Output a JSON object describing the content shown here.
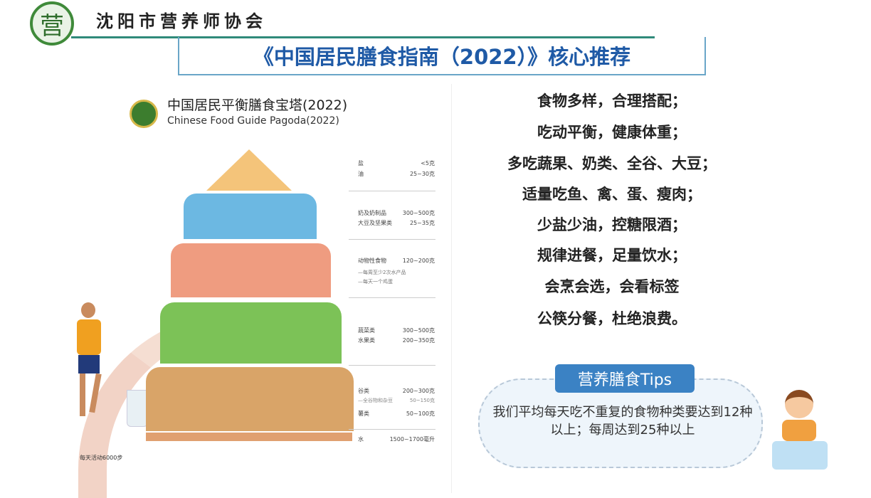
{
  "header": {
    "logo_char": "营",
    "org_name": "沈阳市营养师协会",
    "title": "《中国居民膳食指南（2022）》核心推荐"
  },
  "pagoda": {
    "title": "中国居民平衡膳食宝塔(2022)",
    "subtitle": "Chinese Food Guide Pagoda(2022)",
    "tiers": [
      {
        "items": [
          {
            "name": "盐",
            "amount": "<5克"
          },
          {
            "name": "油",
            "amount": "25~30克"
          }
        ],
        "notes": [],
        "color": "#f4c47a"
      },
      {
        "items": [
          {
            "name": "奶及奶制品",
            "amount": "300~500克"
          },
          {
            "name": "大豆及坚果类",
            "amount": "25~35克"
          }
        ],
        "notes": [],
        "color": "#6cb8e2"
      },
      {
        "items": [
          {
            "name": "动物性食物",
            "amount": "120~200克"
          }
        ],
        "notes": [
          "—每周至少2次水产品",
          "—每天一个鸡蛋"
        ],
        "color": "#ef9c80"
      },
      {
        "items": [
          {
            "name": "蔬菜类",
            "amount": "300~500克"
          },
          {
            "name": "水果类",
            "amount": "200~350克"
          }
        ],
        "notes": [],
        "color": "#7cc257"
      },
      {
        "items": [
          {
            "name": "谷类",
            "amount": "200~300克"
          },
          {
            "name": "—全谷物和杂豆",
            "amount": "50~150克"
          },
          {
            "name": "薯类",
            "amount": "50~100克"
          }
        ],
        "notes": [],
        "color": "#d9a468"
      }
    ],
    "water": {
      "name": "水",
      "amount": "1500~1700毫升"
    },
    "activity": "每天活动6000步"
  },
  "recommendations": [
    "食物多样，合理搭配；",
    "吃动平衡，健康体重；",
    "多吃蔬果、奶类、全谷、大豆；",
    "适量吃鱼、禽、蛋、瘦肉；",
    "少盐少油，控糖限酒；",
    "规律进餐，足量饮水；",
    "会烹会选，会看标签",
    "公筷分餐，杜绝浪费。"
  ],
  "tips": {
    "label": "营养膳食Tips",
    "text": "我们平均每天吃不重复的食物种类要达到12种以上；每周达到25种以上"
  },
  "colors": {
    "title": "#1f5aa6",
    "tips_button": "#3b82c4",
    "logo_green": "#3f8a3a"
  }
}
